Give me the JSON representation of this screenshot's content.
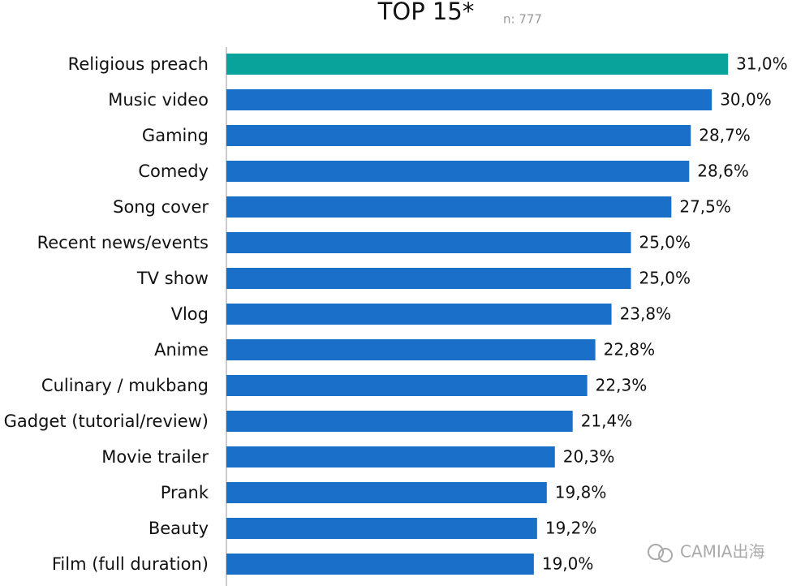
{
  "chart_data": {
    "type": "barh",
    "title": "TOP 15*",
    "subtitle": "n: 777",
    "categories": [
      "Religious preach",
      "Music video",
      "Gaming",
      "Comedy",
      "Song cover",
      "Recent news/events",
      "TV show",
      "Vlog",
      "Anime",
      "Culinary / mukbang",
      "Gadget (tutorial/review)",
      "Movie trailer",
      "Prank",
      "Beauty",
      "Film (full duration)"
    ],
    "values": [
      31.0,
      30.0,
      28.7,
      28.6,
      27.5,
      25.0,
      25.0,
      23.8,
      22.8,
      22.3,
      21.4,
      20.3,
      19.8,
      19.2,
      19.0
    ],
    "value_labels": [
      "31,0%",
      "30,0%",
      "28,7%",
      "28,6%",
      "27,5%",
      "25,0%",
      "25,0%",
      "23,8%",
      "22,8%",
      "22,3%",
      "21,4%",
      "20,3%",
      "19,8%",
      "19,2%",
      "19,0%"
    ],
    "colors": [
      "#0aa39b",
      "#1a6fc9",
      "#1a6fc9",
      "#1a6fc9",
      "#1a6fc9",
      "#1a6fc9",
      "#1a6fc9",
      "#1a6fc9",
      "#1a6fc9",
      "#1a6fc9",
      "#1a6fc9",
      "#1a6fc9",
      "#1a6fc9",
      "#1a6fc9",
      "#1a6fc9"
    ],
    "watermark": "CAMIA出海"
  }
}
